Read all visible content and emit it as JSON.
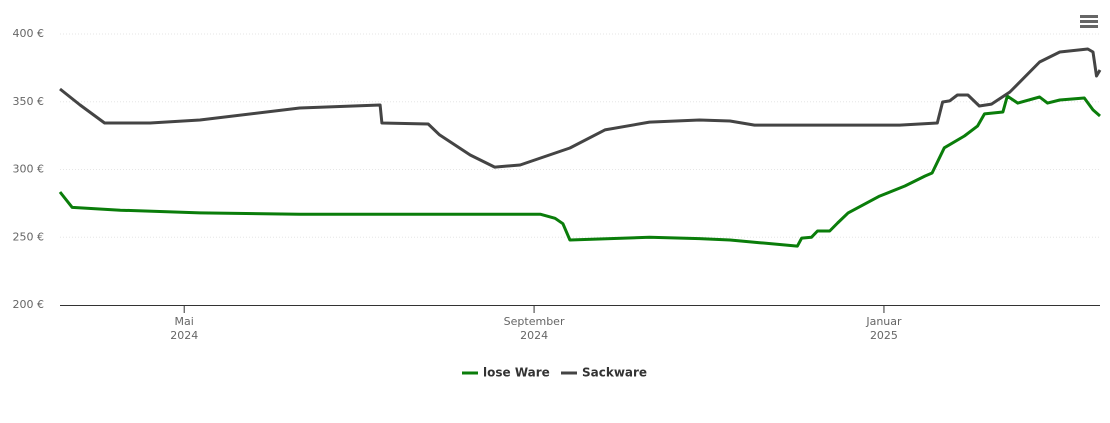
{
  "chart_data": {
    "type": "line",
    "xlim": [
      2.58,
      14.47
    ],
    "xticks": [
      {
        "value": 4,
        "label": [
          "Mai",
          "2024"
        ]
      },
      {
        "value": 8,
        "label": [
          "September",
          "2024"
        ]
      },
      {
        "value": 12,
        "label": [
          "Januar",
          "2025"
        ]
      }
    ],
    "ylim": [
      200,
      400
    ],
    "yticks": [
      {
        "value": 200,
        "label": "200 €"
      },
      {
        "value": 250,
        "label": "250 €"
      },
      {
        "value": 300,
        "label": "300 €"
      },
      {
        "value": 350,
        "label": "350 €"
      },
      {
        "value": 400,
        "label": "400 €"
      }
    ],
    "grid": true,
    "legend": "bottom",
    "series": [
      {
        "name": "lose Ware",
        "color": "#0a7d0a",
        "x": [
          2.58,
          2.72,
          3.27,
          4.18,
          5.32,
          8.07,
          8.24,
          8.33,
          8.41,
          9.32,
          9.89,
          10.24,
          10.58,
          11.01,
          11.06,
          11.17,
          11.24,
          11.38,
          11.47,
          11.59,
          11.95,
          12.24,
          12.47,
          12.55,
          12.69,
          12.92,
          13.07,
          13.15,
          13.36,
          13.41,
          13.53,
          13.78,
          13.87,
          14.01,
          14.29,
          14.39,
          14.47
        ],
        "values": [
          283.4,
          272,
          270,
          268,
          267,
          267,
          264,
          260,
          248,
          250,
          249,
          248,
          246,
          243.5,
          249.4,
          250,
          254.6,
          254.6,
          260.5,
          268,
          280.4,
          287.8,
          295.2,
          297.4,
          316,
          324.7,
          332,
          341,
          342.4,
          354.2,
          349,
          353.5,
          349,
          351.3,
          352.8,
          344,
          339.5
        ]
      },
      {
        "name": "Sackware",
        "color": "#444444",
        "x": [
          2.58,
          2.81,
          3.09,
          3.61,
          4.18,
          5.32,
          6.24,
          6.26,
          6.79,
          6.92,
          7.27,
          7.55,
          7.84,
          8.41,
          8.81,
          9.32,
          9.89,
          10.24,
          10.52,
          12.18,
          12.61,
          12.67,
          12.75,
          12.84,
          12.96,
          13.09,
          13.23,
          13.44,
          13.78,
          14.01,
          14.33,
          14.39,
          14.43,
          14.47
        ],
        "values": [
          359.4,
          347.6,
          334.3,
          334.3,
          336.5,
          345.4,
          347.6,
          334.3,
          333.6,
          325.5,
          310.7,
          301.8,
          303.3,
          315.9,
          329.2,
          335,
          336.5,
          335.8,
          332.8,
          332.8,
          334.3,
          349.8,
          350.6,
          355,
          355,
          346.9,
          348.3,
          357.2,
          379.3,
          386.7,
          388.9,
          386.7,
          369,
          373.4
        ]
      }
    ]
  }
}
